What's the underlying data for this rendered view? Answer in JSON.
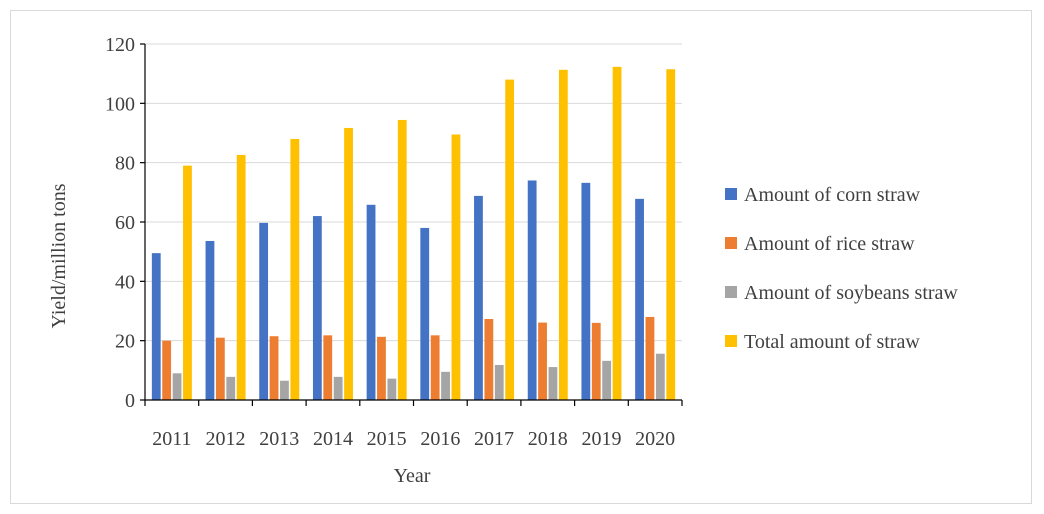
{
  "chart_data": {
    "type": "bar",
    "title": "",
    "xlabel": "Year",
    "ylabel": "Yield/million tons",
    "ylim": [
      0,
      120
    ],
    "yticks": [
      0,
      20,
      40,
      60,
      80,
      100,
      120
    ],
    "grid": true,
    "legend_position": "right",
    "categories": [
      "2011",
      "2012",
      "2013",
      "2014",
      "2015",
      "2016",
      "2017",
      "2018",
      "2019",
      "2020"
    ],
    "series": [
      {
        "name": "Amount of corn straw",
        "color": "#4472c4",
        "values": [
          49.5,
          53.6,
          59.7,
          62.0,
          65.8,
          58.0,
          68.8,
          74.0,
          73.2,
          67.8
        ]
      },
      {
        "name": "Amount of rice straw",
        "color": "#ed7d31",
        "values": [
          20.0,
          21.0,
          21.5,
          21.8,
          21.3,
          21.8,
          27.3,
          26.1,
          26.0,
          28.0
        ]
      },
      {
        "name": "Amount of soybeans straw",
        "color": "#a5a5a5",
        "values": [
          9.0,
          7.8,
          6.5,
          7.8,
          7.2,
          9.5,
          11.8,
          11.1,
          13.2,
          15.6
        ]
      },
      {
        "name": "Total amount of straw",
        "color": "#ffc000",
        "values": [
          79.0,
          82.6,
          88.0,
          91.7,
          94.4,
          89.5,
          108.0,
          111.3,
          112.3,
          111.5
        ]
      }
    ]
  }
}
